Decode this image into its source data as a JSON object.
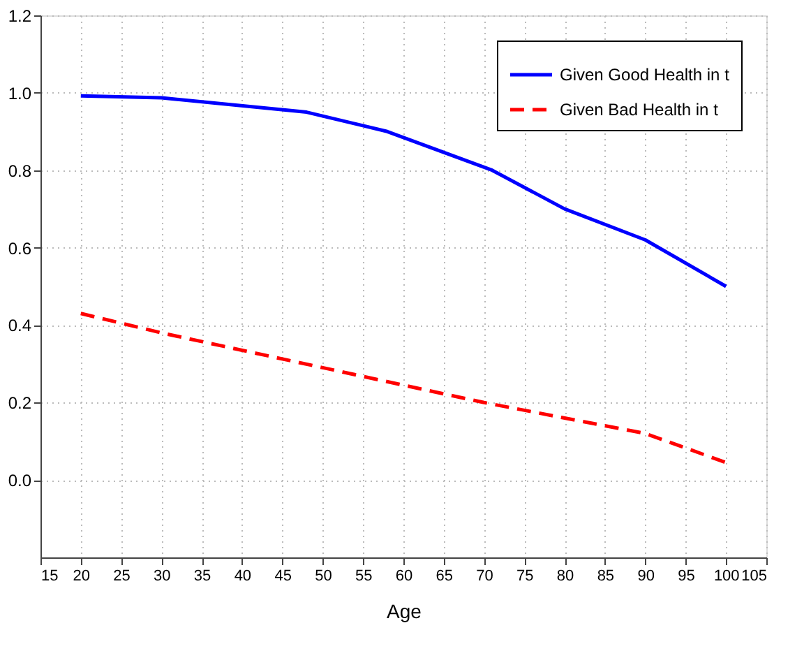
{
  "chart_data": {
    "type": "line",
    "xlabel": "Age",
    "xlim": [
      15,
      105
    ],
    "xticks": [
      15,
      20,
      25,
      30,
      35,
      40,
      45,
      50,
      55,
      60,
      65,
      70,
      75,
      80,
      85,
      90,
      95,
      100,
      105
    ],
    "ylim": [
      -0.2,
      1.2
    ],
    "yticks": [
      {
        "value": 0,
        "label": "0.0"
      },
      0.2,
      0.4,
      0.6,
      0.8,
      {
        "value": 1,
        "label": "1.0"
      },
      1.2
    ],
    "grid": true,
    "legend": "top right",
    "marker": "none",
    "series": [
      {
        "name": "Given Good Health in t",
        "color": "#0000ff",
        "line_style": "solid",
        "x": [
          20,
          30,
          48,
          58,
          71,
          80,
          90,
          100
        ],
        "values": [
          0.992,
          0.987,
          0.95,
          0.9,
          0.8,
          0.7,
          0.62,
          0.5
        ]
      },
      {
        "name": "Given Bad Health in t",
        "color": "#ff0000",
        "line_style": "dashed",
        "x": [
          20,
          30,
          40,
          50,
          60,
          70,
          80,
          90,
          100
        ],
        "values": [
          0.43,
          0.38,
          0.335,
          0.29,
          0.245,
          0.2,
          0.16,
          0.12,
          0.045
        ]
      }
    ]
  }
}
